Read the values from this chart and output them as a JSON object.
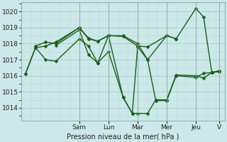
{
  "xlabel": "Pression niveau de la mer( hPa )",
  "background_color": "#cce8e8",
  "line_color": "#1a5c1a",
  "grid_color_major": "#aacccc",
  "grid_color_minor": "#bbdddd",
  "ylim": [
    1013.2,
    1020.6
  ],
  "yticks": [
    1014,
    1015,
    1016,
    1017,
    1018,
    1019,
    1020
  ],
  "day_labels": [
    "Sam",
    "Lun",
    "Mar",
    "Mer",
    "Jeu",
    "V"
  ],
  "day_positions": [
    0.285,
    0.428,
    0.571,
    0.714,
    0.857,
    0.97
  ],
  "series": [
    [
      [
        0.02,
        1016.1
      ],
      [
        0.07,
        1017.75
      ],
      [
        0.12,
        1017.85
      ],
      [
        0.17,
        1018.1
      ],
      [
        0.285,
        1019.0
      ],
      [
        0.33,
        1018.3
      ],
      [
        0.375,
        1018.15
      ],
      [
        0.428,
        1018.5
      ],
      [
        0.5,
        1018.5
      ],
      [
        0.571,
        1018.0
      ],
      [
        0.62,
        1017.0
      ],
      [
        0.714,
        1018.5
      ],
      [
        0.76,
        1018.3
      ],
      [
        0.857,
        1020.2
      ],
      [
        0.895,
        1019.65
      ],
      [
        0.935,
        1016.2
      ],
      [
        0.97,
        1016.3
      ]
    ],
    [
      [
        0.02,
        1016.1
      ],
      [
        0.07,
        1017.75
      ],
      [
        0.12,
        1017.0
      ],
      [
        0.17,
        1016.9
      ],
      [
        0.285,
        1018.3
      ],
      [
        0.33,
        1017.85
      ],
      [
        0.375,
        1016.8
      ],
      [
        0.428,
        1017.5
      ],
      [
        0.5,
        1014.65
      ],
      [
        0.545,
        1013.65
      ],
      [
        0.571,
        1013.65
      ],
      [
        0.62,
        1013.65
      ],
      [
        0.66,
        1014.5
      ],
      [
        0.714,
        1014.5
      ],
      [
        0.76,
        1016.05
      ],
      [
        0.857,
        1016.0
      ],
      [
        0.895,
        1015.85
      ],
      [
        0.935,
        1016.2
      ],
      [
        0.97,
        1016.3
      ]
    ],
    [
      [
        0.07,
        1017.85
      ],
      [
        0.12,
        1018.1
      ],
      [
        0.17,
        1018.0
      ],
      [
        0.285,
        1019.0
      ],
      [
        0.33,
        1018.35
      ],
      [
        0.375,
        1018.15
      ],
      [
        0.428,
        1018.5
      ],
      [
        0.5,
        1018.45
      ],
      [
        0.571,
        1017.85
      ],
      [
        0.62,
        1017.8
      ],
      [
        0.714,
        1018.5
      ],
      [
        0.76,
        1018.3
      ]
    ],
    [
      [
        0.17,
        1017.9
      ],
      [
        0.285,
        1018.85
      ],
      [
        0.33,
        1017.3
      ],
      [
        0.375,
        1016.8
      ],
      [
        0.428,
        1018.5
      ],
      [
        0.5,
        1014.65
      ],
      [
        0.545,
        1013.65
      ],
      [
        0.571,
        1017.8
      ],
      [
        0.62,
        1017.0
      ],
      [
        0.66,
        1014.45
      ],
      [
        0.714,
        1014.45
      ],
      [
        0.76,
        1016.0
      ],
      [
        0.857,
        1015.9
      ],
      [
        0.895,
        1016.15
      ],
      [
        0.935,
        1016.2
      ],
      [
        0.97,
        1016.25
      ]
    ]
  ],
  "marker": "D",
  "markersize": 2.5,
  "linewidth": 1.0
}
